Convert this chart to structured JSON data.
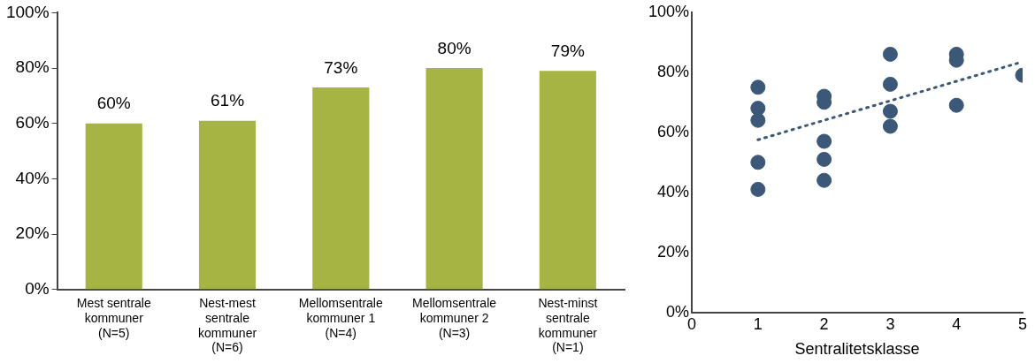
{
  "chart_data": [
    {
      "type": "bar",
      "categories": [
        "Mest sentrale kommuner (N=5)",
        "Nest-mest sentrale kommuner (N=6)",
        "Mellomsentrale kommuner 1 (N=4)",
        "Mellomsentrale kommuner 2 (N=3)",
        "Nest-minst sentrale kommuner (N=1)"
      ],
      "values": [
        60,
        61,
        73,
        80,
        79
      ],
      "value_labels": [
        "60%",
        "61%",
        "73%",
        "80%",
        "79%"
      ],
      "color": "#a5b443",
      "ylim": [
        0,
        100
      ],
      "yticks": [
        {
          "value": 0,
          "label": "0%"
        },
        {
          "value": 20,
          "label": "20%"
        },
        {
          "value": 40,
          "label": "40%"
        },
        {
          "value": 60,
          "label": "60%"
        },
        {
          "value": 80,
          "label": "80%"
        },
        {
          "value": 100,
          "label": "100%"
        }
      ],
      "grid": false,
      "legend": false
    },
    {
      "type": "scatter",
      "xlabel": "Sentralitetsklasse",
      "marker": "circle",
      "grid": false,
      "legend": false,
      "xlim": [
        0,
        5
      ],
      "xticks": [
        0,
        1,
        2,
        3,
        4,
        5
      ],
      "ylim": [
        0,
        100
      ],
      "yticks": [
        {
          "value": 0,
          "label": "0%"
        },
        {
          "value": 20,
          "label": "20%"
        },
        {
          "value": 40,
          "label": "40%"
        },
        {
          "value": 60,
          "label": "60%"
        },
        {
          "value": 80,
          "label": "80%"
        },
        {
          "value": 100,
          "label": "100%"
        }
      ],
      "series": [
        {
          "type": "scatter",
          "color": "#3b5878",
          "x": [
            1,
            1,
            1,
            1,
            1,
            2,
            2,
            2,
            2,
            2,
            3,
            3,
            3,
            3,
            4,
            4,
            4,
            5
          ],
          "values": [
            75,
            68,
            64,
            50,
            41,
            72,
            70,
            57,
            51,
            44,
            86,
            76,
            67,
            62,
            86,
            84,
            69,
            79
          ]
        },
        {
          "type": "line",
          "color": "#3b5878",
          "line_style": "dotted",
          "marker": "none",
          "x": [
            1,
            5
          ],
          "values": [
            57.5,
            83.5
          ]
        }
      ]
    }
  ]
}
